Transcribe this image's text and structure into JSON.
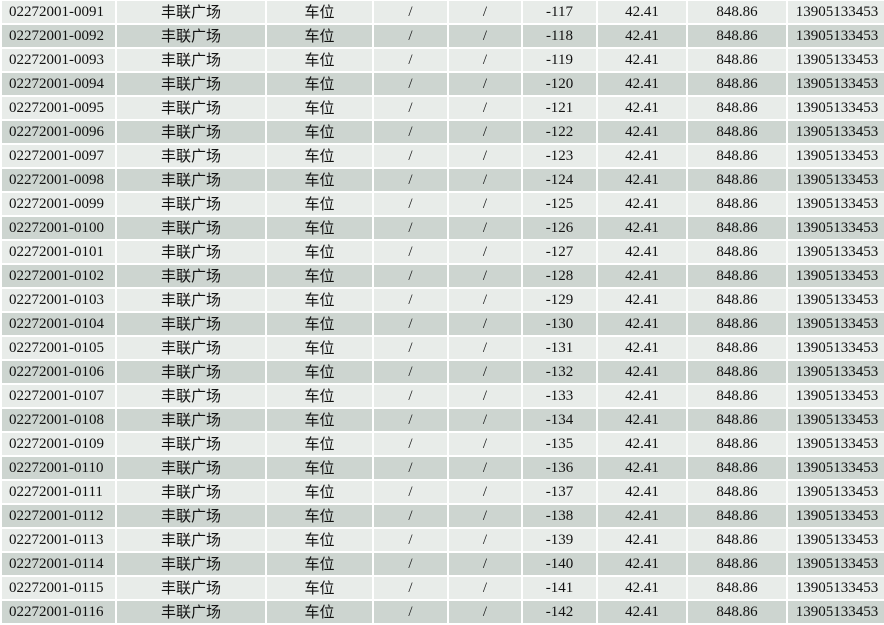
{
  "colors": {
    "row_light": "#e8ece9",
    "row_dark": "#cdd5d0",
    "border": "#ffffff"
  },
  "rows": [
    [
      "02272001-0091",
      "丰联广场",
      "车位",
      "/",
      "/",
      "-117",
      "42.41",
      "848.86",
      "13905133453"
    ],
    [
      "02272001-0092",
      "丰联广场",
      "车位",
      "/",
      "/",
      "-118",
      "42.41",
      "848.86",
      "13905133453"
    ],
    [
      "02272001-0093",
      "丰联广场",
      "车位",
      "/",
      "/",
      "-119",
      "42.41",
      "848.86",
      "13905133453"
    ],
    [
      "02272001-0094",
      "丰联广场",
      "车位",
      "/",
      "/",
      "-120",
      "42.41",
      "848.86",
      "13905133453"
    ],
    [
      "02272001-0095",
      "丰联广场",
      "车位",
      "/",
      "/",
      "-121",
      "42.41",
      "848.86",
      "13905133453"
    ],
    [
      "02272001-0096",
      "丰联广场",
      "车位",
      "/",
      "/",
      "-122",
      "42.41",
      "848.86",
      "13905133453"
    ],
    [
      "02272001-0097",
      "丰联广场",
      "车位",
      "/",
      "/",
      "-123",
      "42.41",
      "848.86",
      "13905133453"
    ],
    [
      "02272001-0098",
      "丰联广场",
      "车位",
      "/",
      "/",
      "-124",
      "42.41",
      "848.86",
      "13905133453"
    ],
    [
      "02272001-0099",
      "丰联广场",
      "车位",
      "/",
      "/",
      "-125",
      "42.41",
      "848.86",
      "13905133453"
    ],
    [
      "02272001-0100",
      "丰联广场",
      "车位",
      "/",
      "/",
      "-126",
      "42.41",
      "848.86",
      "13905133453"
    ],
    [
      "02272001-0101",
      "丰联广场",
      "车位",
      "/",
      "/",
      "-127",
      "42.41",
      "848.86",
      "13905133453"
    ],
    [
      "02272001-0102",
      "丰联广场",
      "车位",
      "/",
      "/",
      "-128",
      "42.41",
      "848.86",
      "13905133453"
    ],
    [
      "02272001-0103",
      "丰联广场",
      "车位",
      "/",
      "/",
      "-129",
      "42.41",
      "848.86",
      "13905133453"
    ],
    [
      "02272001-0104",
      "丰联广场",
      "车位",
      "/",
      "/",
      "-130",
      "42.41",
      "848.86",
      "13905133453"
    ],
    [
      "02272001-0105",
      "丰联广场",
      "车位",
      "/",
      "/",
      "-131",
      "42.41",
      "848.86",
      "13905133453"
    ],
    [
      "02272001-0106",
      "丰联广场",
      "车位",
      "/",
      "/",
      "-132",
      "42.41",
      "848.86",
      "13905133453"
    ],
    [
      "02272001-0107",
      "丰联广场",
      "车位",
      "/",
      "/",
      "-133",
      "42.41",
      "848.86",
      "13905133453"
    ],
    [
      "02272001-0108",
      "丰联广场",
      "车位",
      "/",
      "/",
      "-134",
      "42.41",
      "848.86",
      "13905133453"
    ],
    [
      "02272001-0109",
      "丰联广场",
      "车位",
      "/",
      "/",
      "-135",
      "42.41",
      "848.86",
      "13905133453"
    ],
    [
      "02272001-0110",
      "丰联广场",
      "车位",
      "/",
      "/",
      "-136",
      "42.41",
      "848.86",
      "13905133453"
    ],
    [
      "02272001-0111",
      "丰联广场",
      "车位",
      "/",
      "/",
      "-137",
      "42.41",
      "848.86",
      "13905133453"
    ],
    [
      "02272001-0112",
      "丰联广场",
      "车位",
      "/",
      "/",
      "-138",
      "42.41",
      "848.86",
      "13905133453"
    ],
    [
      "02272001-0113",
      "丰联广场",
      "车位",
      "/",
      "/",
      "-139",
      "42.41",
      "848.86",
      "13905133453"
    ],
    [
      "02272001-0114",
      "丰联广场",
      "车位",
      "/",
      "/",
      "-140",
      "42.41",
      "848.86",
      "13905133453"
    ],
    [
      "02272001-0115",
      "丰联广场",
      "车位",
      "/",
      "/",
      "-141",
      "42.41",
      "848.86",
      "13905133453"
    ],
    [
      "02272001-0116",
      "丰联广场",
      "车位",
      "/",
      "/",
      "-142",
      "42.41",
      "848.86",
      "13905133453"
    ]
  ]
}
